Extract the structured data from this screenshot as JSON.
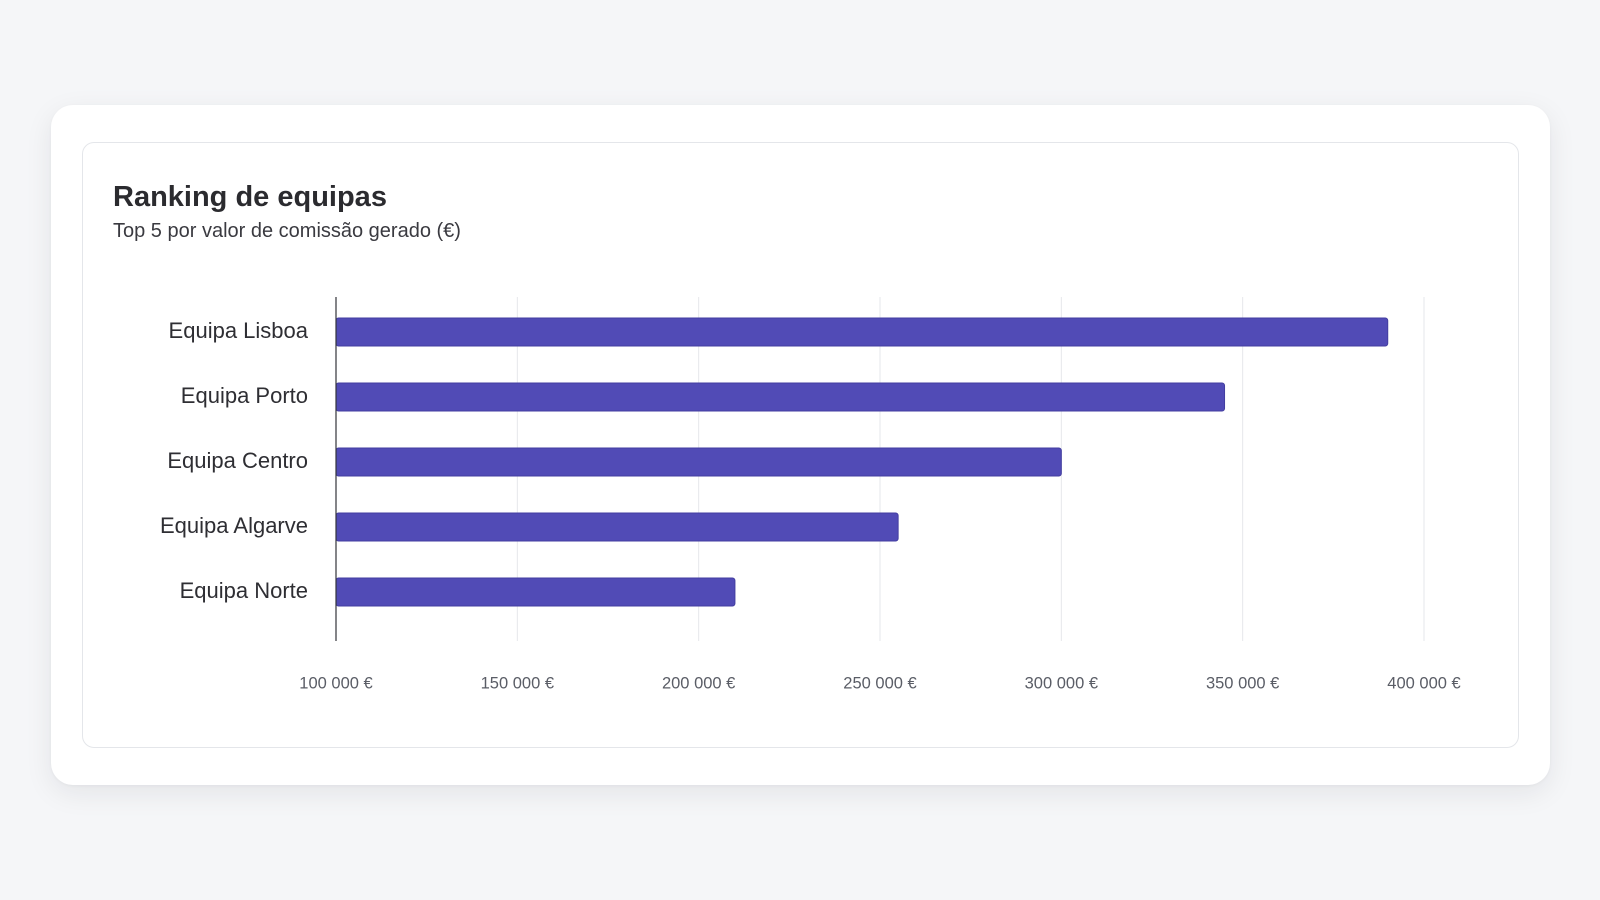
{
  "chart_data": {
    "type": "bar",
    "orientation": "horizontal",
    "title": "Ranking de equipas",
    "subtitle": "Top 5 por valor de comissão gerado (€)",
    "categories": [
      "Equipa Lisboa",
      "Equipa Porto",
      "Equipa Centro",
      "Equipa Algarve",
      "Equipa Norte"
    ],
    "values": [
      390000,
      345000,
      300000,
      255000,
      210000
    ],
    "xlim": [
      100000,
      400000
    ],
    "xticks": [
      100000,
      150000,
      200000,
      250000,
      300000,
      350000,
      400000
    ],
    "xtick_labels": [
      "100 000 €",
      "150 000 €",
      "200 000 €",
      "250 000 €",
      "300 000 €",
      "350 000 €",
      "400 000 €"
    ],
    "xlabel": "",
    "ylabel": "",
    "grid": "vertical",
    "legend": "none",
    "colors": {
      "bar": "#514bb6",
      "bar_border": "#433ea0",
      "grid": "#e6e7eb",
      "axis": "#33343a"
    }
  }
}
